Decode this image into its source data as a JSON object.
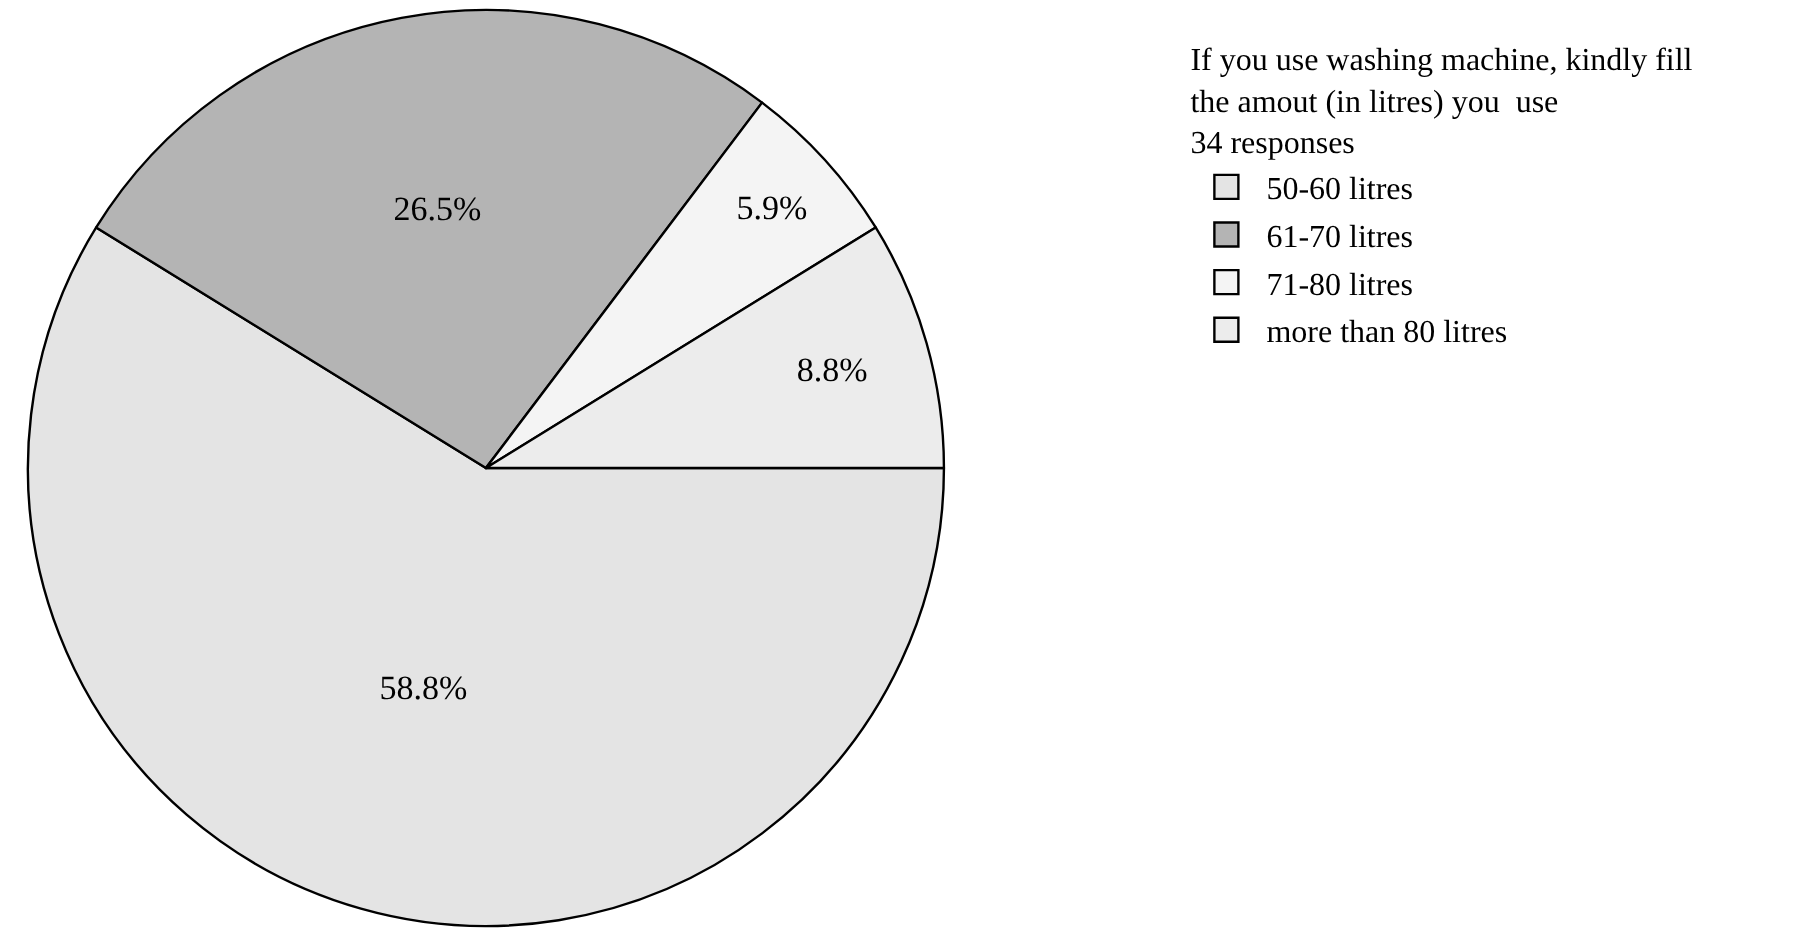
{
  "chart_data": {
    "type": "pie",
    "title": "If you use washing machine, kindly fill the amout (in litres) you  use",
    "subtitle": "34 responses",
    "categories": [
      "50-60 litres",
      "61-70 litres",
      "71-80 litres",
      "more than 80 litres"
    ],
    "values": [
      58.8,
      26.5,
      5.9,
      8.8
    ],
    "value_labels": [
      "58.8%",
      "26.5%",
      "5.9%",
      "8.8%"
    ],
    "colors": [
      "#e4e4e4",
      "#b4b4b4",
      "#f4f4f4",
      "#ececec"
    ],
    "legend": "right"
  }
}
